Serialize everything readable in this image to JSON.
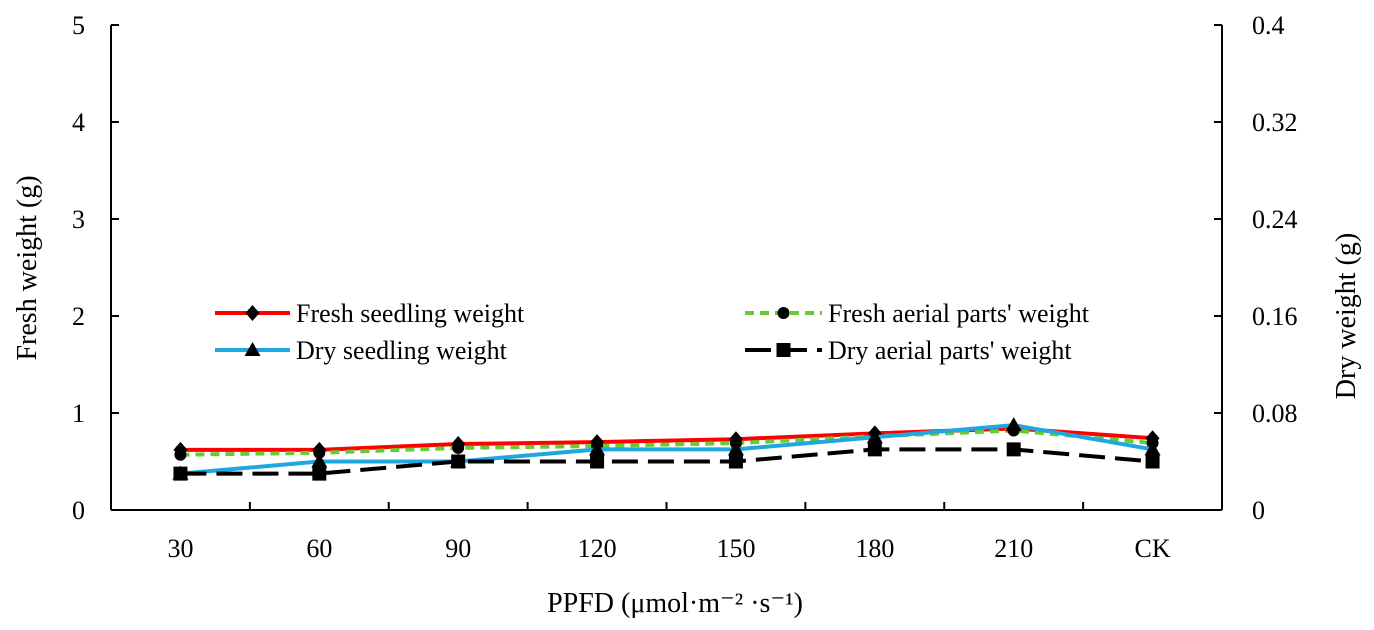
{
  "chart_data": {
    "type": "line",
    "title": "",
    "categories": [
      "30",
      "60",
      "90",
      "120",
      "150",
      "180",
      "210",
      "CK"
    ],
    "xlabel": "PPFD (μmol·m⁻² ·s⁻¹)",
    "ylabel_left": "Fresh weight (g)",
    "ylabel_right": "Dry weight (g)",
    "ylim_left": [
      0,
      5
    ],
    "yticks_left": [
      "0",
      "1",
      "2",
      "3",
      "4",
      "5"
    ],
    "ylim_right": [
      0,
      0.4
    ],
    "yticks_right": [
      "0",
      "0.08",
      "0.16",
      "0.24",
      "0.32",
      "0.4"
    ],
    "grid": false,
    "legend_position": "middle-left",
    "series": [
      {
        "name": "Fresh seedling weight",
        "axis": "left",
        "color": "#ff0000",
        "dash": "solid",
        "marker": "diamond",
        "values": [
          0.62,
          0.62,
          0.68,
          0.7,
          0.73,
          0.79,
          0.84,
          0.74
        ]
      },
      {
        "name": "Fresh aerial parts' weight",
        "axis": "left",
        "color": "#66cc33",
        "dash": "dashed",
        "marker": "circle",
        "values": [
          0.57,
          0.59,
          0.64,
          0.66,
          0.69,
          0.76,
          0.82,
          0.69
        ]
      },
      {
        "name": "Dry seedling weight",
        "axis": "right",
        "color": "#1ea7e1",
        "dash": "solid",
        "marker": "triangle",
        "values": [
          0.03,
          0.04,
          0.04,
          0.05,
          0.05,
          0.06,
          0.07,
          0.05
        ]
      },
      {
        "name": "Dry aerial parts' weight",
        "axis": "right",
        "color": "#000000",
        "dash": "longdash",
        "marker": "square",
        "values": [
          0.03,
          0.03,
          0.04,
          0.04,
          0.04,
          0.05,
          0.05,
          0.04
        ]
      }
    ]
  }
}
